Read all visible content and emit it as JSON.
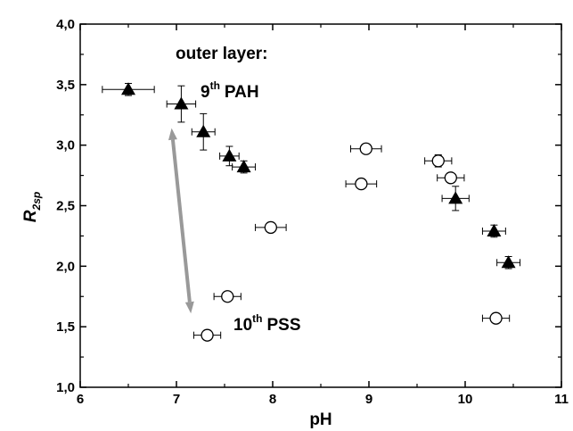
{
  "chart_data": {
    "type": "scatter",
    "xlabel": "pH",
    "ylabel_main": "R",
    "ylabel_sub": "2sp",
    "xlim": [
      6,
      11
    ],
    "ylim": [
      1.0,
      4.0
    ],
    "x_ticks": [
      "6",
      "7",
      "8",
      "9",
      "10",
      "11"
    ],
    "y_ticks": [
      "1,0",
      "1,5",
      "2,0",
      "2,5",
      "3,0",
      "3,5",
      "4,0"
    ],
    "grid": false,
    "annotations": {
      "outer_layer": "outer layer:",
      "pah_num": "9",
      "pah_sup": "th",
      "pah_label": "PAH",
      "pss_num": "10",
      "pss_sup": "th",
      "pss_label": "PSS"
    },
    "arrow": {
      "x1": 6.95,
      "y1": 3.14,
      "x2": 7.15,
      "y2": 1.61,
      "color": "#999999"
    },
    "series": [
      {
        "marker": "filled-triangle",
        "color": "#000000",
        "points": [
          {
            "x": 6.5,
            "y": 3.46,
            "xerr": 0.27,
            "yerr": 0.05
          },
          {
            "x": 7.05,
            "y": 3.34,
            "xerr": 0.15,
            "yerr": 0.15
          },
          {
            "x": 7.28,
            "y": 3.11,
            "xerr": 0.12,
            "yerr": 0.15
          },
          {
            "x": 7.55,
            "y": 2.91,
            "xerr": 0.1,
            "yerr": 0.08
          },
          {
            "x": 7.7,
            "y": 2.82,
            "xerr": 0.12,
            "yerr": 0.05
          },
          {
            "x": 9.9,
            "y": 2.56,
            "xerr": 0.14,
            "yerr": 0.1
          },
          {
            "x": 10.3,
            "y": 2.29,
            "xerr": 0.12,
            "yerr": 0.05
          },
          {
            "x": 10.45,
            "y": 2.03,
            "xerr": 0.12,
            "yerr": 0.05
          }
        ]
      },
      {
        "marker": "open-circle",
        "color": "#000000",
        "points": [
          {
            "x": 7.32,
            "y": 1.43,
            "xerr": 0.14,
            "yerr": 0.0
          },
          {
            "x": 7.53,
            "y": 1.75,
            "xerr": 0.14,
            "yerr": 0.0
          },
          {
            "x": 7.98,
            "y": 2.32,
            "xerr": 0.16,
            "yerr": 0.0
          },
          {
            "x": 8.92,
            "y": 2.68,
            "xerr": 0.16,
            "yerr": 0.0
          },
          {
            "x": 8.97,
            "y": 2.97,
            "xerr": 0.16,
            "yerr": 0.0
          },
          {
            "x": 9.72,
            "y": 2.87,
            "xerr": 0.14,
            "yerr": 0.05
          },
          {
            "x": 9.85,
            "y": 2.73,
            "xerr": 0.14,
            "yerr": 0.0
          },
          {
            "x": 10.32,
            "y": 1.57,
            "xerr": 0.14,
            "yerr": 0.0
          }
        ]
      }
    ]
  }
}
